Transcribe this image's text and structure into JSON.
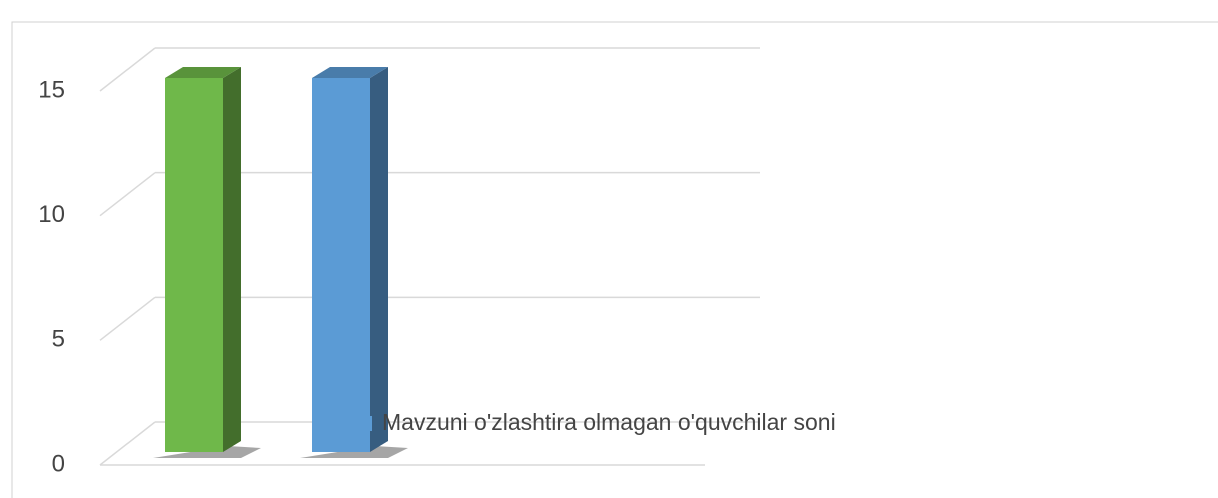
{
  "chart_data": {
    "type": "bar3d",
    "categories": [
      null
    ],
    "series": [
      {
        "color": "#6fb84a",
        "values": [
          15
        ]
      },
      {
        "name": "Mavzuni o'zlashtira olmagan o'quvchilar soni",
        "color": "#5b9bd5",
        "values": [
          15
        ]
      }
    ],
    "ylim": [
      0,
      15
    ],
    "yticks": [
      0,
      5,
      10,
      15
    ],
    "grid": true
  }
}
